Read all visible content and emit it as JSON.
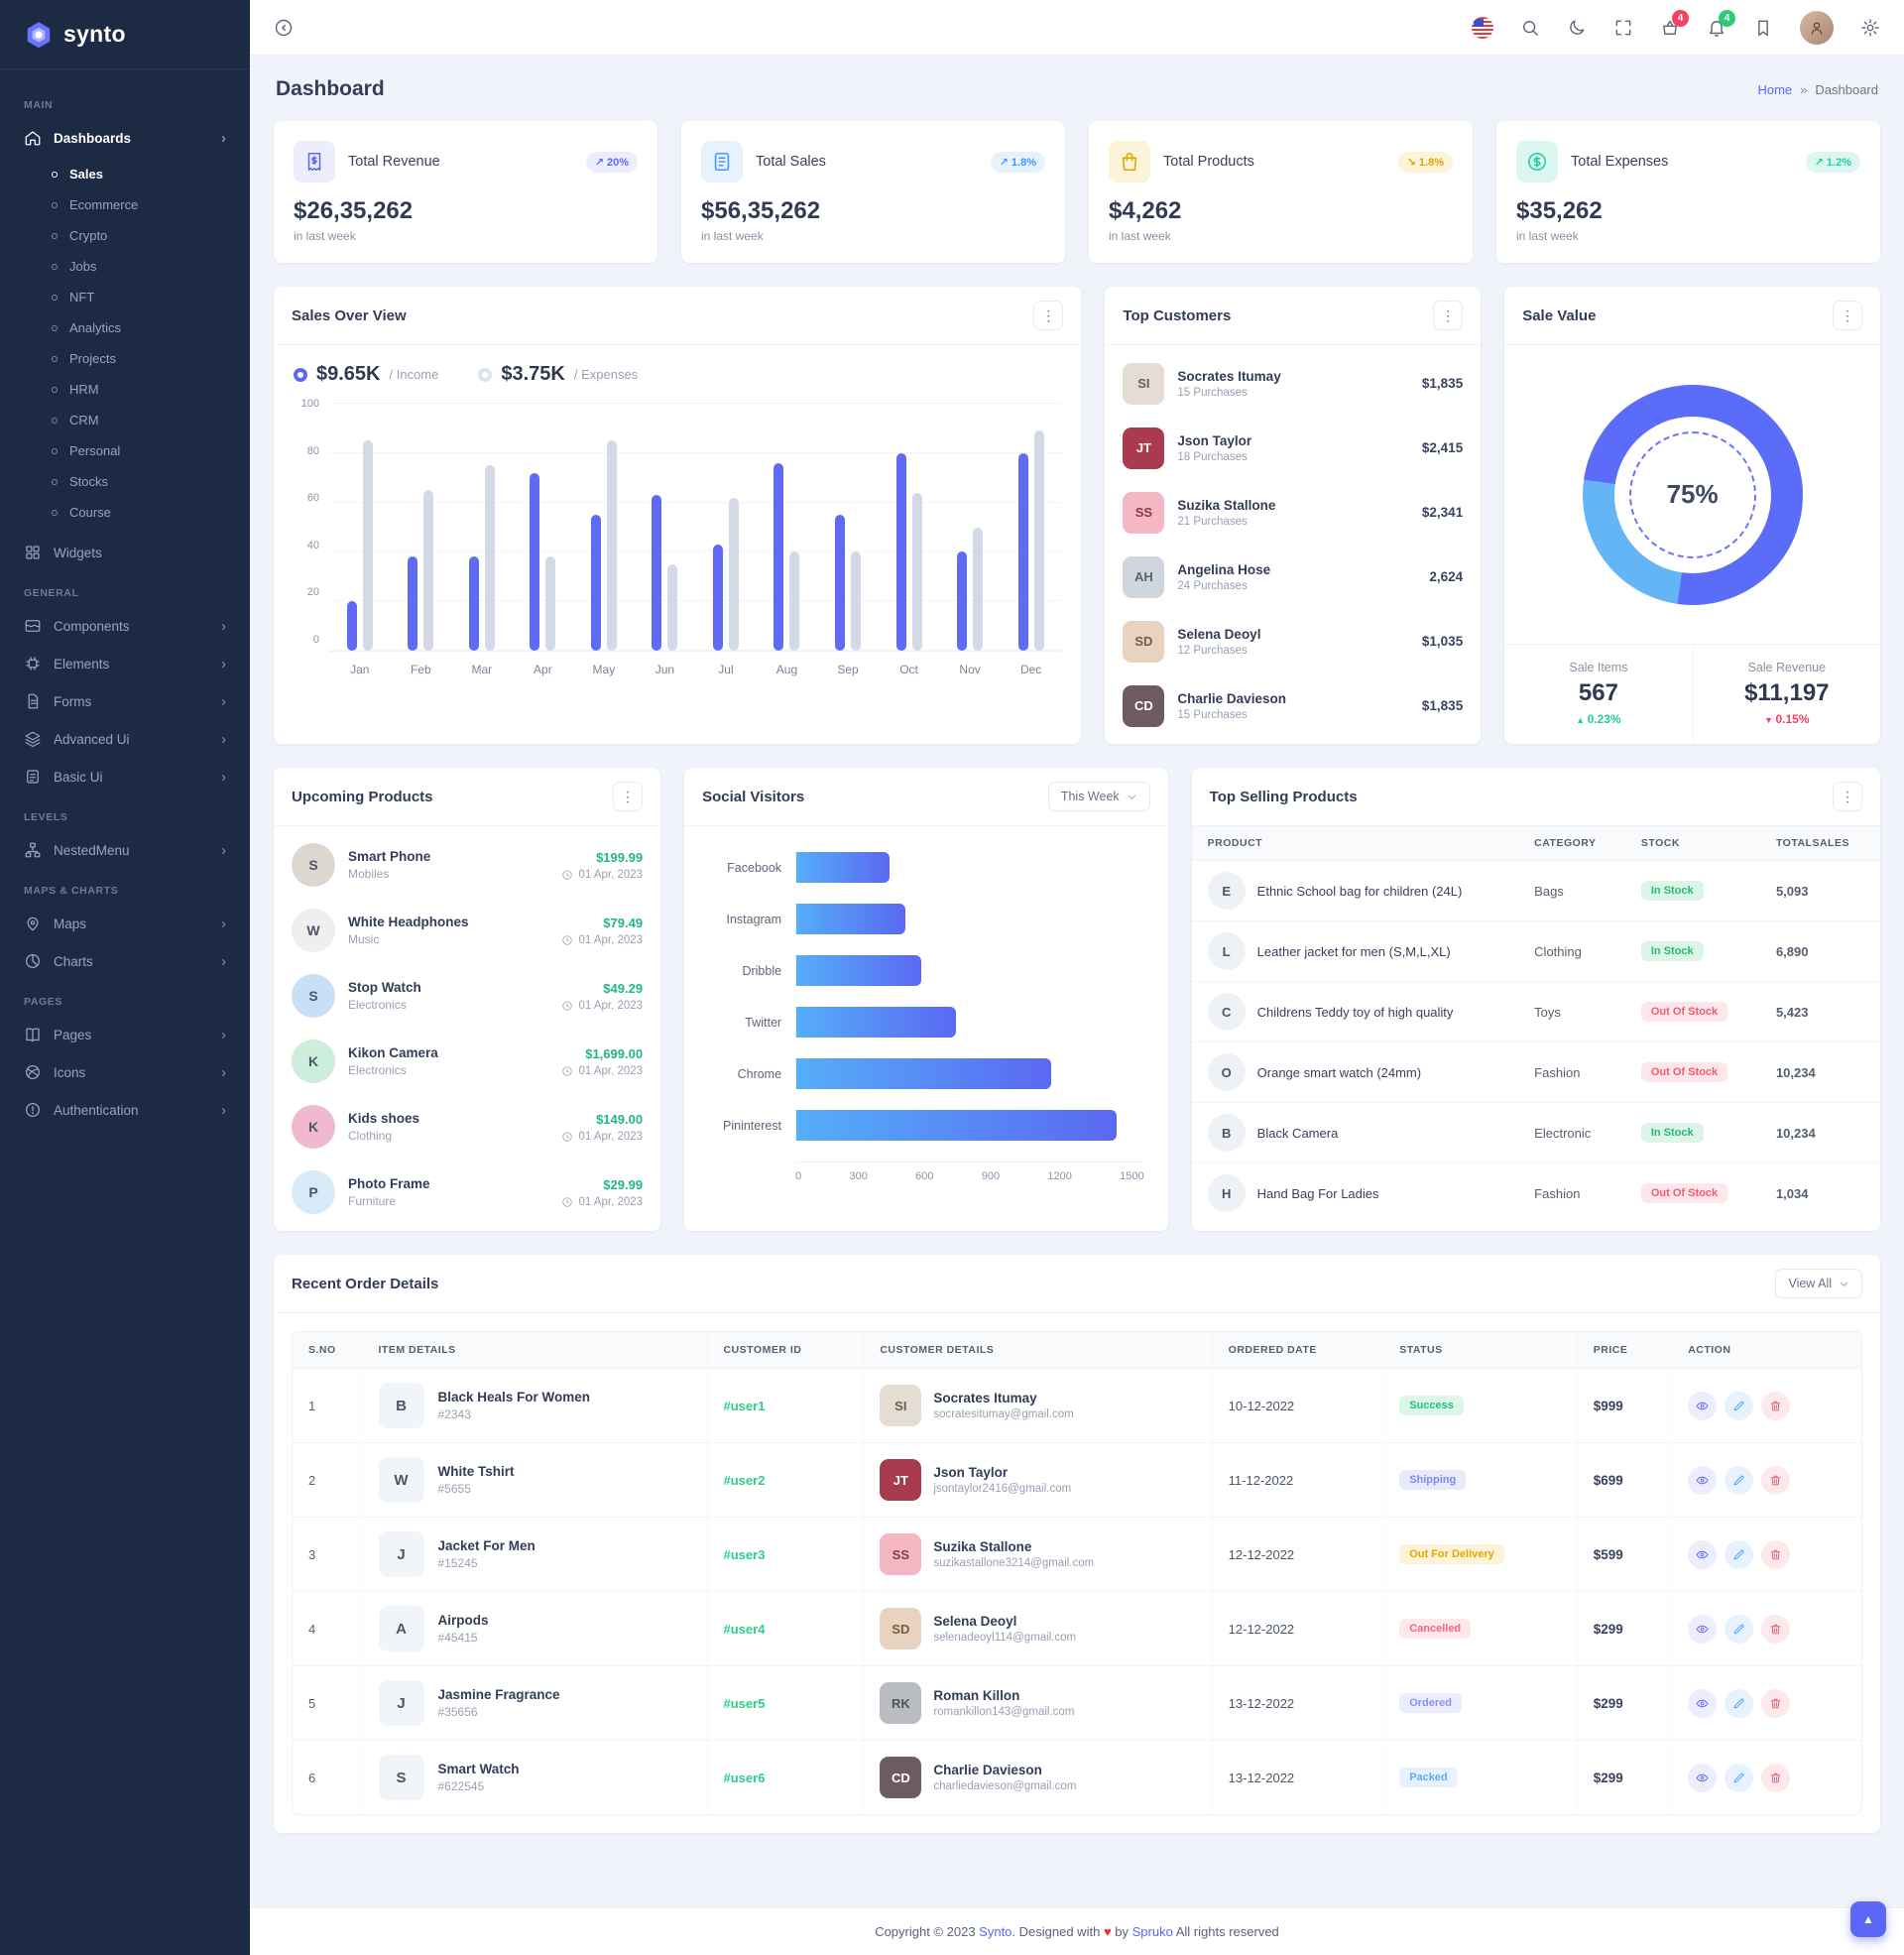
{
  "brand": {
    "name": "synto"
  },
  "colors": {
    "primary": "#5c67f7",
    "secondary": "#3e9bfe",
    "success": "#21ce9e",
    "warning": "#dfa400",
    "danger": "#f5415f",
    "income_bar": "#5f6af5",
    "expense_bar": "#d4d9e6",
    "donut_secondary": "#64b5f6",
    "sidebar_bg": "#1d2a44"
  },
  "sidebar": {
    "sections": [
      {
        "label": "MAIN",
        "items": [
          {
            "icon": "home-icon",
            "label": "Dashboards",
            "active": true,
            "chevron": true,
            "children": [
              {
                "label": "Sales",
                "active": true
              },
              {
                "label": "Ecommerce"
              },
              {
                "label": "Crypto"
              },
              {
                "label": "Jobs"
              },
              {
                "label": "NFT"
              },
              {
                "label": "Analytics"
              },
              {
                "label": "Projects"
              },
              {
                "label": "HRM"
              },
              {
                "label": "CRM"
              },
              {
                "label": "Personal"
              },
              {
                "label": "Stocks"
              },
              {
                "label": "Course"
              }
            ]
          },
          {
            "icon": "widgets-icon",
            "label": "Widgets"
          }
        ]
      },
      {
        "label": "GENERAL",
        "items": [
          {
            "icon": "components-icon",
            "label": "Components",
            "chevron": true
          },
          {
            "icon": "elements-icon",
            "label": "Elements",
            "chevron": true
          },
          {
            "icon": "forms-icon",
            "label": "Forms",
            "chevron": true
          },
          {
            "icon": "advanced-ui-icon",
            "label": "Advanced Ui",
            "chevron": true
          },
          {
            "icon": "basic-ui-icon",
            "label": "Basic Ui",
            "chevron": true
          }
        ]
      },
      {
        "label": "LEVELS",
        "items": [
          {
            "icon": "nested-menu-icon",
            "label": "NestedMenu",
            "chevron": true
          }
        ]
      },
      {
        "label": "MAPS & CHARTS",
        "items": [
          {
            "icon": "maps-icon",
            "label": "Maps",
            "chevron": true
          },
          {
            "icon": "charts-icon",
            "label": "Charts",
            "chevron": true
          }
        ]
      },
      {
        "label": "PAGES",
        "items": [
          {
            "icon": "pages-icon",
            "label": "Pages",
            "chevron": true
          },
          {
            "icon": "icons-icon",
            "label": "Icons",
            "chevron": true
          },
          {
            "icon": "authentication-icon",
            "label": "Authentication",
            "chevron": true
          }
        ]
      }
    ]
  },
  "header": {
    "cart_badge": "4",
    "bell_badge": "4",
    "icons": [
      "us-flag-icon",
      "search-icon",
      "moon-icon",
      "fullscreen-icon",
      "basket-icon",
      "bell-icon",
      "bookmark-icon",
      "user-avatar",
      "gear-icon"
    ]
  },
  "page": {
    "title": "Dashboard",
    "home": "Home",
    "sep": "»",
    "current": "Dashboard"
  },
  "stats": [
    {
      "label": "Total Revenue",
      "value": "$26,35,262",
      "change": "20%",
      "trend": "up",
      "period": "in last week",
      "color": "purple",
      "icon": "invoice-icon"
    },
    {
      "label": "Total Sales",
      "value": "$56,35,262",
      "change": "1.8%",
      "trend": "up",
      "period": "in last week",
      "color": "blue",
      "icon": "receipt-icon"
    },
    {
      "label": "Total Products",
      "value": "$4,262",
      "change": "1.8%",
      "trend": "down",
      "period": "in last week",
      "color": "yellow",
      "icon": "bag-icon"
    },
    {
      "label": "Total Expenses",
      "value": "$35,262",
      "change": "1.2%",
      "trend": "up",
      "period": "in last week",
      "color": "green",
      "icon": "dollar-circle-icon"
    }
  ],
  "chart_data": [
    {
      "id": "sales_over_view",
      "type": "bar",
      "title": "Sales Over View",
      "categories": [
        "Jan",
        "Feb",
        "Mar",
        "Apr",
        "May",
        "Jun",
        "Jul",
        "Aug",
        "Sep",
        "Oct",
        "Nov",
        "Dec"
      ],
      "series": [
        {
          "name": "Income",
          "color": "#5f6af5",
          "values": [
            20,
            38,
            38,
            72,
            55,
            63,
            43,
            76,
            55,
            80,
            40,
            80
          ]
        },
        {
          "name": "Expenses",
          "color": "#d4d9e6",
          "values": [
            85,
            65,
            75,
            38,
            85,
            35,
            62,
            40,
            40,
            64,
            50,
            89
          ]
        }
      ],
      "ylim": [
        0,
        100
      ],
      "yticks": [
        0,
        20,
        40,
        60,
        80,
        100
      ],
      "grid": true,
      "legend": [
        {
          "value": "$9.65K",
          "label": "/ Income"
        },
        {
          "value": "$3.75K",
          "label": "/ Expenses"
        }
      ]
    },
    {
      "id": "social_visitors",
      "type": "bar",
      "orientation": "horizontal",
      "title": "Social Visitors",
      "categories": [
        "Facebook",
        "Instagram",
        "Dribble",
        "Twitter",
        "Chrome",
        "Pininterest"
      ],
      "values": [
        400,
        470,
        540,
        690,
        1100,
        1380
      ],
      "xlim": [
        0,
        1500
      ],
      "xticks": [
        0,
        300,
        600,
        900,
        1200,
        1500
      ]
    },
    {
      "id": "sale_value",
      "type": "pie",
      "title": "Sale Value",
      "center_label": "75%",
      "slices": [
        {
          "label": "Primary",
          "value": 75,
          "color": "#5b6cf9"
        },
        {
          "label": "Secondary",
          "value": 25,
          "color": "#64b5f6"
        }
      ]
    }
  ],
  "top_customers": {
    "title": "Top Customers",
    "rows": [
      {
        "name": "Socrates Itumay",
        "purchases": "15 Purchases",
        "amount": "$1,835",
        "initials": "SI",
        "bg": "#e4ddd3",
        "fg": "#6b5f4e"
      },
      {
        "name": "Json Taylor",
        "purchases": "18 Purchases",
        "amount": "$2,415",
        "initials": "JT",
        "bg": "#a93b4e",
        "fg": "#ffffff"
      },
      {
        "name": "Suzika Stallone",
        "purchases": "21 Purchases",
        "amount": "$2,341",
        "initials": "SS",
        "bg": "#f4b7c4",
        "fg": "#8c3a4e"
      },
      {
        "name": "Angelina Hose",
        "purchases": "24 Purchases",
        "amount": "2,624",
        "initials": "AH",
        "bg": "#cfd6de",
        "fg": "#5a6674"
      },
      {
        "name": "Selena Deoyl",
        "purchases": "12 Purchases",
        "amount": "$1,035",
        "initials": "SD",
        "bg": "#e8d3c0",
        "fg": "#7a5c3e"
      },
      {
        "name": "Charlie Davieson",
        "purchases": "15 Purchases",
        "amount": "$1,835",
        "initials": "CD",
        "bg": "#6e5a63",
        "fg": "#ffffff"
      }
    ]
  },
  "sale_value": {
    "items_label": "Sale Items",
    "items_value": "567",
    "items_change": "0.23%",
    "items_trend": "up",
    "revenue_label": "Sale Revenue",
    "revenue_value": "$11,197",
    "revenue_change": "0.15%",
    "revenue_trend": "down"
  },
  "upcoming_products": {
    "title": "Upcoming Products",
    "rows": [
      {
        "name": "Smart Phone",
        "category": "Mobiles",
        "price": "$199.99",
        "date": "01 Apr, 2023",
        "initial": "S",
        "bg": "#ddd8cf"
      },
      {
        "name": "White Headphones",
        "category": "Music",
        "price": "$79.49",
        "date": "01 Apr, 2023",
        "initial": "W",
        "bg": "#f0efed"
      },
      {
        "name": "Stop Watch",
        "category": "Electronics",
        "price": "$49.29",
        "date": "01 Apr, 2023",
        "initial": "S",
        "bg": "#c9dff5"
      },
      {
        "name": "Kikon Camera",
        "category": "Electronics",
        "price": "$1,699.00",
        "date": "01 Apr, 2023",
        "initial": "K",
        "bg": "#cdeedd"
      },
      {
        "name": "Kids shoes",
        "category": "Clothing",
        "price": "$149.00",
        "date": "01 Apr, 2023",
        "initial": "K",
        "bg": "#f0b9cf"
      },
      {
        "name": "Photo Frame",
        "category": "Furniture",
        "price": "$29.99",
        "date": "01 Apr, 2023",
        "initial": "P",
        "bg": "#d6ebf7"
      }
    ]
  },
  "social_visitors": {
    "filter": "This Week"
  },
  "top_selling": {
    "title": "Top Selling Products",
    "columns": [
      "PRODUCT",
      "CATEGORY",
      "STOCK",
      "TOTALSALES"
    ],
    "rows": [
      {
        "product": "Ethnic School bag for children (24L)",
        "category": "Bags",
        "stock": "In Stock",
        "stock_type": "in",
        "total": "5,093",
        "initial": "E"
      },
      {
        "product": "Leather jacket for men (S,M,L,XL)",
        "category": "Clothing",
        "stock": "In Stock",
        "stock_type": "in",
        "total": "6,890",
        "initial": "L"
      },
      {
        "product": "Childrens Teddy toy of high quality",
        "category": "Toys",
        "stock": "Out Of Stock",
        "stock_type": "out",
        "total": "5,423",
        "initial": "C"
      },
      {
        "product": "Orange smart watch (24mm)",
        "category": "Fashion",
        "stock": "Out Of Stock",
        "stock_type": "out",
        "total": "10,234",
        "initial": "O"
      },
      {
        "product": "Black Camera",
        "category": "Electronic",
        "stock": "In Stock",
        "stock_type": "in",
        "total": "10,234",
        "initial": "B"
      },
      {
        "product": "Hand Bag For Ladies",
        "category": "Fashion",
        "stock": "Out Of Stock",
        "stock_type": "out",
        "total": "1,034",
        "initial": "H"
      }
    ]
  },
  "recent_orders": {
    "title": "Recent Order Details",
    "view_all": "View All",
    "columns": [
      "S.NO",
      "ITEM DETAILS",
      "CUSTOMER ID",
      "CUSTOMER DETAILS",
      "ORDERED DATE",
      "STATUS",
      "PRICE",
      "ACTION"
    ],
    "rows": [
      {
        "sno": "1",
        "item": "Black Heals For Women",
        "item_id": "#2343",
        "item_initial": "B",
        "cid": "#user1",
        "customer": "Socrates Itumay",
        "email": "socratesitumay@gmail.com",
        "av": "SI",
        "av_bg": "#e4ddd3",
        "av_fg": "#6b5f4e",
        "date": "10-12-2022",
        "status": "Success",
        "status_type": "success",
        "price": "$999"
      },
      {
        "sno": "2",
        "item": "White Tshirt",
        "item_id": "#5655",
        "item_initial": "W",
        "cid": "#user2",
        "customer": "Json Taylor",
        "email": "jsontaylor2416@gmail.com",
        "av": "JT",
        "av_bg": "#a93b4e",
        "av_fg": "#ffffff",
        "date": "11-12-2022",
        "status": "Shipping",
        "status_type": "shipping",
        "price": "$699"
      },
      {
        "sno": "3",
        "item": "Jacket For Men",
        "item_id": "#15245",
        "item_initial": "J",
        "cid": "#user3",
        "customer": "Suzika Stallone",
        "email": "suzikastallone3214@gmail.com",
        "av": "SS",
        "av_bg": "#f4b7c4",
        "av_fg": "#8c3a4e",
        "date": "12-12-2022",
        "status": "Out For Delivery",
        "status_type": "delivery",
        "price": "$599"
      },
      {
        "sno": "4",
        "item": "Airpods",
        "item_id": "#45415",
        "item_initial": "A",
        "cid": "#user4",
        "customer": "Selena Deoyl",
        "email": "selenadeoyl114@gmail.com",
        "av": "SD",
        "av_bg": "#e8d3c0",
        "av_fg": "#7a5c3e",
        "date": "12-12-2022",
        "status": "Cancelled",
        "status_type": "cancelled",
        "price": "$299"
      },
      {
        "sno": "5",
        "item": "Jasmine Fragrance",
        "item_id": "#35656",
        "item_initial": "J",
        "cid": "#user5",
        "customer": "Roman Killon",
        "email": "romankillon143@gmail.com",
        "av": "RK",
        "av_bg": "#b9bdc1",
        "av_fg": "#4c5358",
        "date": "13-12-2022",
        "status": "Ordered",
        "status_type": "ordered",
        "price": "$299"
      },
      {
        "sno": "6",
        "item": "Smart Watch",
        "item_id": "#622545",
        "item_initial": "S",
        "cid": "#user6",
        "customer": "Charlie Davieson",
        "email": "charliedavieson@gmail.com",
        "av": "CD",
        "av_bg": "#6e5a63",
        "av_fg": "#ffffff",
        "date": "13-12-2022",
        "status": "Packed",
        "status_type": "packed",
        "price": "$299"
      }
    ]
  },
  "footer": {
    "copyright": "Copyright © 2023",
    "brand": "Synto",
    "designed": ". Designed with",
    "by": "by",
    "designer": "Spruko",
    "rights": "All rights reserved"
  }
}
